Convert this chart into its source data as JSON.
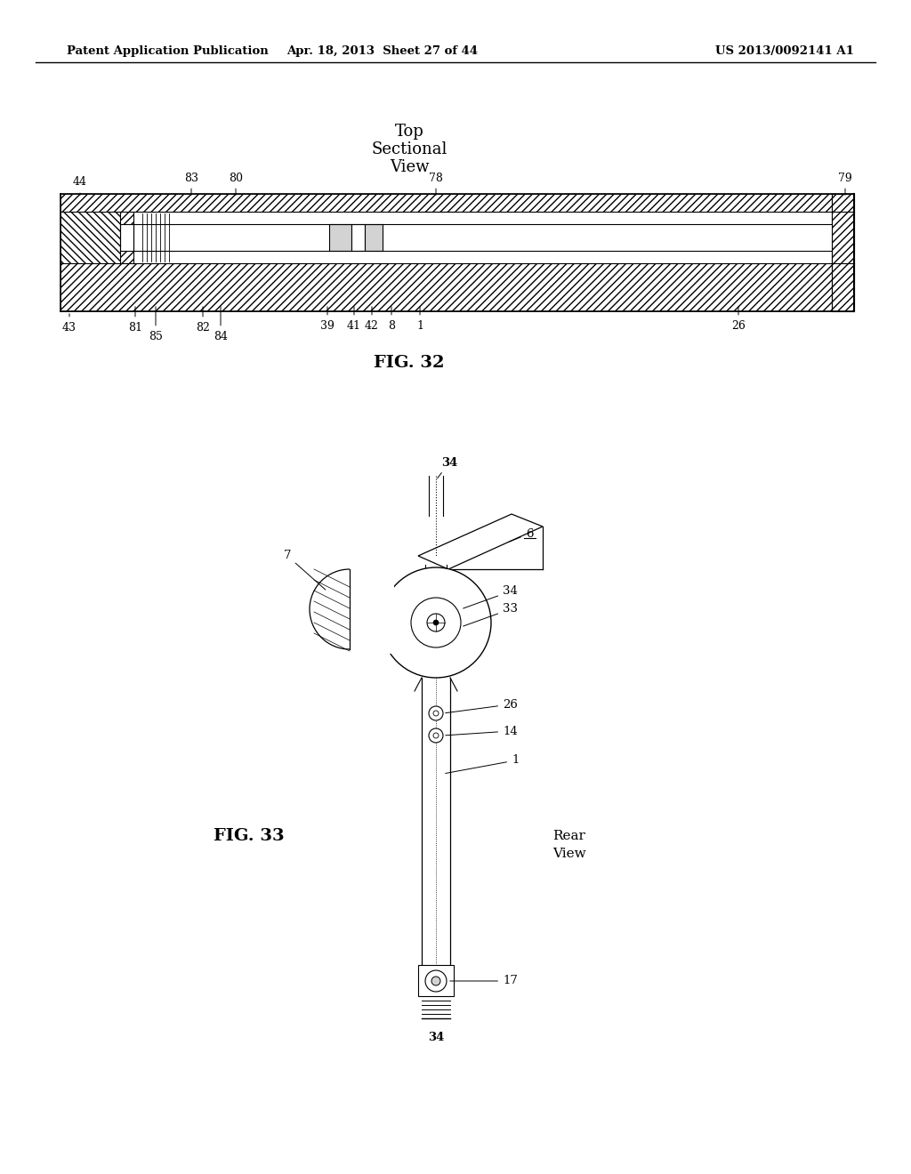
{
  "bg_color": "#ffffff",
  "header_left": "Patent Application Publication",
  "header_center": "Apr. 18, 2013  Sheet 27 of 44",
  "header_right": "US 2013/0092141 A1",
  "fig32_label": "FIG. 32",
  "fig33_label": "FIG. 33"
}
